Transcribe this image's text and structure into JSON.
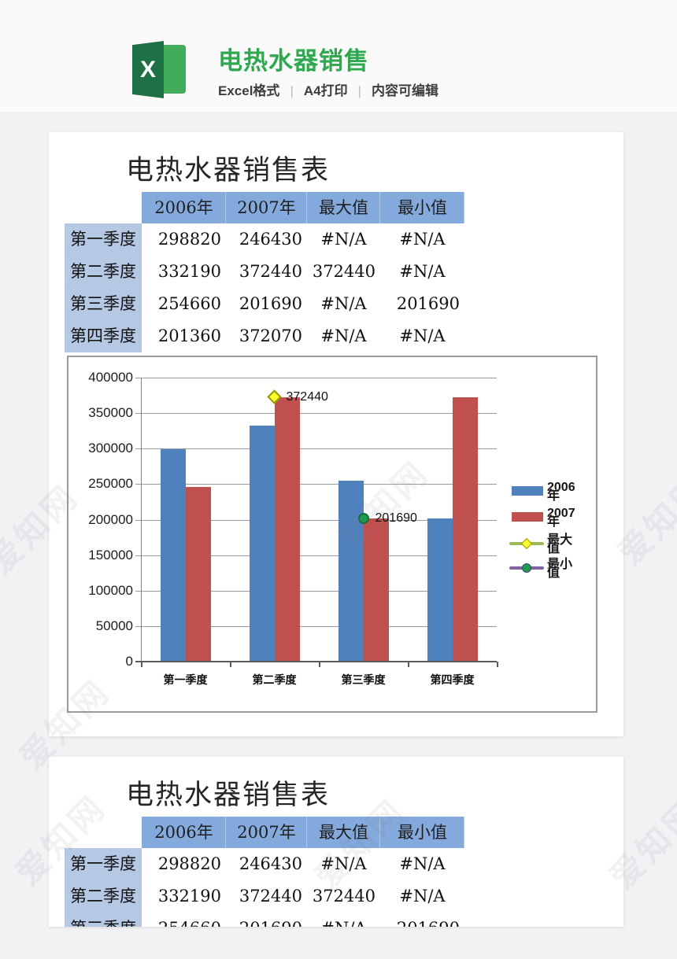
{
  "header": {
    "title": "电热水器销售",
    "title_color": "#2fa84f",
    "subtitle_items": [
      "Excel格式",
      "A4打印",
      "内容可编辑"
    ],
    "excel_icon_letter": "X"
  },
  "watermark_text": "爱知网",
  "sheet": {
    "title": "电热水器销售表",
    "table": {
      "columns": [
        "",
        "2006年",
        "2007年",
        "最大值",
        "最小值"
      ],
      "rows": [
        {
          "label": "第一季度",
          "values": [
            "298820",
            "246430",
            "#N/A",
            "#N/A"
          ]
        },
        {
          "label": "第二季度",
          "values": [
            "332190",
            "372440",
            "372440",
            "#N/A"
          ]
        },
        {
          "label": "第三季度",
          "values": [
            "254660",
            "201690",
            "#N/A",
            "201690"
          ]
        },
        {
          "label": "第四季度",
          "values": [
            "201360",
            "372070",
            "#N/A",
            "#N/A"
          ]
        }
      ],
      "header_bg": "#84a9dc",
      "label_bg": "#b6c9e4"
    }
  },
  "chart_data": {
    "type": "bar",
    "categories": [
      "第一季度",
      "第二季度",
      "第三季度",
      "第四季度"
    ],
    "series": [
      {
        "name": "2006年",
        "color": "#4f81bd",
        "values": [
          298820,
          332190,
          254660,
          201360
        ]
      },
      {
        "name": "2007年",
        "color": "#c0504d",
        "values": [
          246430,
          372440,
          201690,
          372070
        ]
      }
    ],
    "markers": [
      {
        "name": "最大值",
        "shape": "diamond",
        "color": "#ffff2e",
        "line_color": "#9bbb59",
        "category_index": 1,
        "value": 372440,
        "label": "372440"
      },
      {
        "name": "最小值",
        "shape": "circle",
        "color": "#1e9b50",
        "line_color": "#8064a2",
        "category_index": 2,
        "value": 201690,
        "label": "201690"
      }
    ],
    "title": "",
    "xlabel": "",
    "ylabel": "",
    "ylim": [
      0,
      400000
    ],
    "ytick_step": 50000,
    "grid": true,
    "legend_position": "right"
  }
}
